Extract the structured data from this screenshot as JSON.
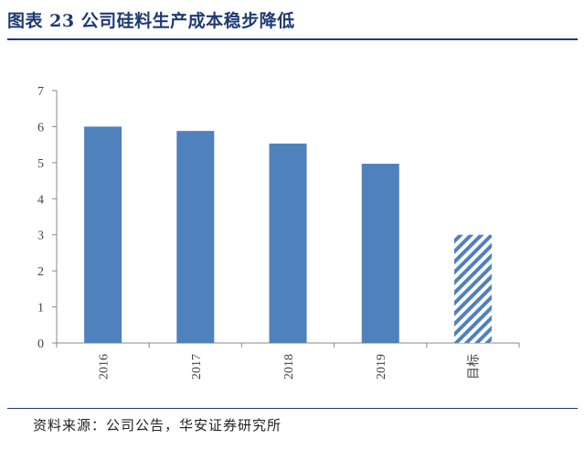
{
  "title": "图表 23 公司硅料生产成本稳步降低",
  "source": "资料来源：公司公告，华安证券研究所",
  "colors": {
    "bar": "#4f81bd",
    "title": "#1f3b73",
    "axis": "#888888"
  },
  "chart_data": {
    "type": "bar",
    "categories": [
      "2016",
      "2017",
      "2018",
      "2019",
      "目标"
    ],
    "values": [
      6.0,
      5.88,
      5.53,
      4.97,
      3.0
    ],
    "patterned": [
      false,
      false,
      false,
      false,
      true
    ],
    "ylim": [
      0,
      7
    ],
    "yticks": [
      0,
      1,
      2,
      3,
      4,
      5,
      6,
      7
    ],
    "grid": false,
    "legend": "none"
  }
}
